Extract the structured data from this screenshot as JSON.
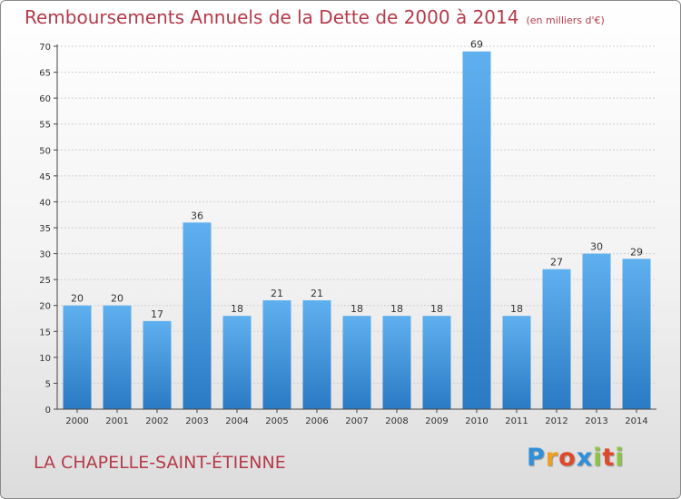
{
  "header": {
    "title": "Remboursements Annuels de la Dette de 2000 à 2014",
    "unit": "(en milliers d'€)"
  },
  "footer": {
    "commune": "LA CHAPELLE-SAINT-ÉTIENNE"
  },
  "logo": {
    "letters": [
      "P",
      "r",
      "o",
      "x",
      "i",
      "t",
      "i"
    ],
    "colors": [
      "#2f8fd8",
      "#f0a020",
      "#e0482a",
      "#2f8fd8",
      "#8cc63f",
      "#e0482a",
      "#8cc63f"
    ]
  },
  "colors": {
    "title": "#b53a4a",
    "bar_light": "#5fb0ef",
    "bar_dark": "#2a7ac4",
    "gridline": "#cfcfcf",
    "axis": "#444444"
  },
  "chart_data": {
    "type": "bar",
    "title": "Remboursements Annuels de la Dette de 2000 à 2014",
    "ylabel": "en milliers d'€",
    "xlabel": "",
    "categories": [
      "2000",
      "2001",
      "2002",
      "2003",
      "2004",
      "2005",
      "2006",
      "2007",
      "2008",
      "2009",
      "2010",
      "2011",
      "2012",
      "2013",
      "2014"
    ],
    "values": [
      20,
      20,
      17,
      36,
      18,
      21,
      21,
      18,
      18,
      18,
      69,
      18,
      27,
      30,
      29
    ],
    "ylim": [
      0,
      70
    ],
    "yticks": [
      0,
      5,
      10,
      15,
      20,
      25,
      30,
      35,
      40,
      45,
      50,
      55,
      60,
      65,
      70
    ],
    "grid": true,
    "legend": "none"
  }
}
